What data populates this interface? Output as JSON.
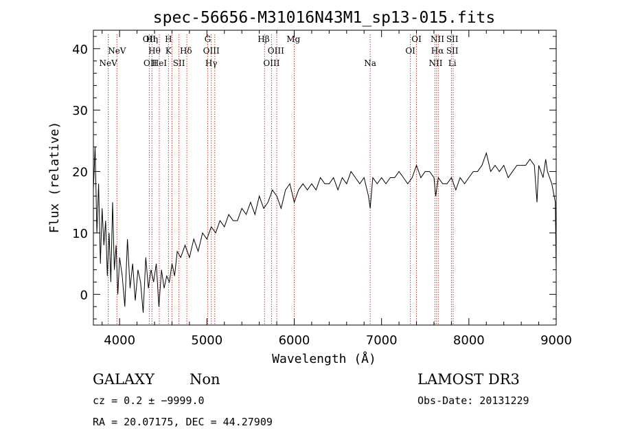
{
  "chart_data": {
    "type": "line",
    "title": "spec-56656-M31016N43M1_sp13-015.fits",
    "xlabel": "Wavelength (Å)",
    "ylabel": "Flux (relative)",
    "xlim": [
      3700,
      9000
    ],
    "ylim": [
      -5,
      43
    ],
    "x_ticks": [
      4000,
      5000,
      6000,
      7000,
      8000,
      9000
    ],
    "y_ticks": [
      0,
      10,
      20,
      30,
      40
    ],
    "grid": false,
    "series": [
      {
        "name": "spectrum",
        "color": "#000000",
        "x": [
          3700,
          3720,
          3740,
          3760,
          3780,
          3800,
          3820,
          3840,
          3860,
          3880,
          3900,
          3920,
          3940,
          3960,
          3980,
          4000,
          4030,
          4060,
          4090,
          4120,
          4150,
          4180,
          4210,
          4240,
          4270,
          4300,
          4330,
          4360,
          4390,
          4420,
          4450,
          4480,
          4510,
          4540,
          4570,
          4600,
          4630,
          4660,
          4700,
          4750,
          4800,
          4850,
          4900,
          4950,
          5000,
          5050,
          5100,
          5150,
          5200,
          5250,
          5300,
          5350,
          5400,
          5450,
          5500,
          5550,
          5600,
          5650,
          5700,
          5750,
          5800,
          5850,
          5900,
          5950,
          6000,
          6050,
          6100,
          6150,
          6200,
          6250,
          6300,
          6350,
          6400,
          6450,
          6500,
          6550,
          6600,
          6650,
          6700,
          6750,
          6800,
          6850,
          6870,
          6900,
          6950,
          7000,
          7050,
          7100,
          7150,
          7200,
          7250,
          7300,
          7350,
          7400,
          7450,
          7500,
          7550,
          7600,
          7620,
          7650,
          7700,
          7750,
          7800,
          7850,
          7900,
          7950,
          8000,
          8050,
          8100,
          8150,
          8200,
          8250,
          8300,
          8350,
          8400,
          8450,
          8500,
          8550,
          8600,
          8650,
          8700,
          8750,
          8780,
          8800,
          8850,
          8880,
          8900,
          8950,
          8990,
          9000
        ],
        "y": [
          17,
          24,
          10,
          18,
          5,
          14,
          8,
          12,
          3,
          10,
          2,
          15,
          4,
          8,
          0,
          6,
          3,
          -2,
          9,
          1,
          5,
          -1,
          4,
          2,
          -3,
          6,
          1,
          4,
          2,
          5,
          -2,
          4,
          1,
          3,
          2,
          5,
          3,
          7,
          6,
          8,
          6,
          9,
          7,
          10,
          9,
          11,
          10,
          12,
          11,
          13,
          12,
          12,
          14,
          13,
          15,
          13,
          16,
          14,
          15,
          17,
          16,
          14,
          17,
          18,
          15,
          17,
          18,
          17,
          18,
          17,
          19,
          18,
          18,
          19,
          17,
          19,
          18,
          20,
          19,
          18,
          19,
          16,
          14,
          19,
          18,
          19,
          18,
          19,
          19,
          20,
          19,
          18,
          19,
          21,
          19,
          20,
          20,
          19,
          16,
          19,
          18,
          18,
          19,
          17,
          19,
          18,
          19,
          20,
          20,
          21,
          23,
          20,
          21,
          20,
          21,
          19,
          20,
          21,
          21,
          21,
          22,
          21,
          15,
          21,
          19,
          22,
          20,
          18,
          15,
          4
        ]
      }
    ],
    "emission_lines": [
      {
        "name": "NeV",
        "row": 3,
        "wavelength": 3870
      },
      {
        "name": "NeV",
        "row": 2,
        "wavelength": 3970
      },
      {
        "name": "OII",
        "row": 1,
        "wavelength": 4340
      },
      {
        "name": "Hη",
        "row": 1,
        "wavelength": 4370
      },
      {
        "name": "Hθ",
        "row": 2,
        "wavelength": 4400
      },
      {
        "name": "OII",
        "row": 3,
        "wavelength": 4350
      },
      {
        "name": "HeI",
        "row": 3,
        "wavelength": 4455
      },
      {
        "name": "H",
        "row": 1,
        "wavelength": 4560
      },
      {
        "name": "K",
        "row": 2,
        "wavelength": 4560
      },
      {
        "name": "SII",
        "row": 3,
        "wavelength": 4680
      },
      {
        "name": "Hδ",
        "row": 2,
        "wavelength": 4760
      },
      {
        "name": "G",
        "row": 1,
        "wavelength": 5010
      },
      {
        "name": "OIII",
        "row": 2,
        "wavelength": 5050
      },
      {
        "name": "Hγ",
        "row": 3,
        "wavelength": 5050
      },
      {
        "name": "Hβ",
        "row": 1,
        "wavelength": 5650
      },
      {
        "name": "OIII",
        "row": 2,
        "wavelength": 5790
      },
      {
        "name": "OIII",
        "row": 3,
        "wavelength": 5740
      },
      {
        "name": "Mg",
        "row": 1,
        "wavelength": 5990
      },
      {
        "name": "Na",
        "row": 3,
        "wavelength": 6870
      },
      {
        "name": "OI",
        "row": 1,
        "wavelength": 7400
      },
      {
        "name": "OI",
        "row": 2,
        "wavelength": 7330
      },
      {
        "name": "NII",
        "row": 1,
        "wavelength": 7640
      },
      {
        "name": "Hα",
        "row": 2,
        "wavelength": 7640
      },
      {
        "name": "NII",
        "row": 3,
        "wavelength": 7620
      },
      {
        "name": "SII",
        "row": 1,
        "wavelength": 7810
      },
      {
        "name": "SII",
        "row": 2,
        "wavelength": 7810
      },
      {
        "name": "Li",
        "row": 3,
        "wavelength": 7810
      }
    ],
    "line_markers": [
      3870,
      3970,
      4340,
      4370,
      4455,
      4560,
      4600,
      4680,
      4770,
      5010,
      5050,
      5090,
      5660,
      5740,
      5800,
      6000,
      6870,
      7330,
      7400,
      7610,
      7630,
      7650,
      7800,
      7820
    ]
  },
  "footer": {
    "object_class": "GALAXY",
    "subclass": "Non",
    "survey": "LAMOST DR3",
    "redshift": "cz =  0.2 ± −9999.0",
    "obs_date": "Obs-Date: 20131229",
    "coords": "RA =  20.07175, DEC =  44.27909"
  }
}
